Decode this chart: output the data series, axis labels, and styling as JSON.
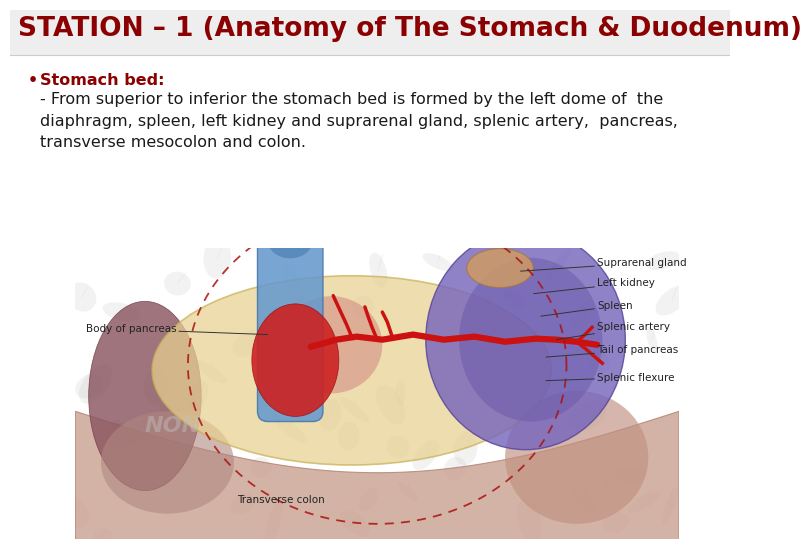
{
  "title": "STATION – 1 (Anatomy of The Stomach & Duodenum)",
  "title_color": "#8b0000",
  "title_fontsize": 19,
  "bg_color": "#ffffff",
  "bullet_label": "Stomach bed:",
  "bullet_label_color": "#8b0000",
  "bullet_fontsize": 11.5,
  "body_text": "- From superior to inferior the stomach bed is formed by the left dome of  the\ndiaphragm, spleen, left kidney and suprarenal gland, splenic artery,  pancreas,\ntransverse mesocolon and colon.",
  "body_text_color": "#1a1a1a",
  "body_fontsize": 11.5,
  "label_fontsize": 7.5,
  "label_color": "#222222"
}
